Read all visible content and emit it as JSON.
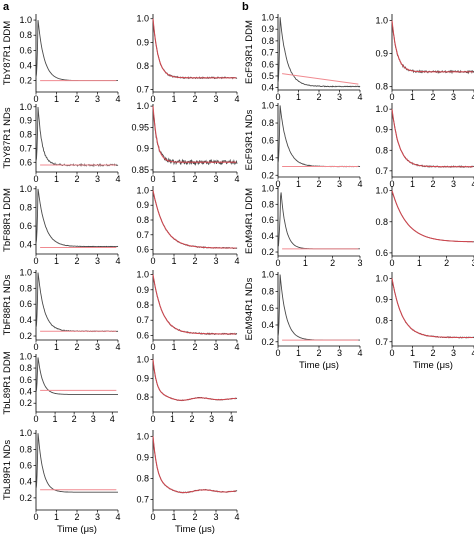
{
  "panels": {
    "a": "a",
    "b": "b"
  },
  "colors": {
    "trace": "#4a4a4a",
    "fit": "#e0454f",
    "background": "#f08a90",
    "axis": "#000000"
  },
  "chart_data": [
    {
      "type": "line",
      "id": "TbY87R1-DDM-raw",
      "ylabel": "TbY87R1 DDM",
      "xlabel": "",
      "xlim": [
        0,
        4
      ],
      "xticks": [
        0,
        1,
        2,
        3,
        4
      ],
      "ylim": [
        0.05,
        1.08
      ],
      "yticks": [
        0.2,
        0.4,
        0.6,
        0.8,
        1.0
      ],
      "peak": 0.1,
      "base": 0.2,
      "bgline": 0.2,
      "tau": 0.3,
      "noise": 0.0
    },
    {
      "type": "line",
      "id": "TbY87R1-DDM-corr",
      "xlabel": "",
      "xlim": [
        0,
        4
      ],
      "xticks": [
        0,
        1,
        2,
        3,
        4
      ],
      "ylim": [
        0.69,
        1.02
      ],
      "yticks": [
        0.7,
        0.8,
        0.9,
        1.0
      ],
      "peak": 0.0,
      "base": 0.75,
      "tau": 0.25,
      "noise": 0.003
    },
    {
      "type": "line",
      "id": "TbY87R1-NDs-raw",
      "ylabel": "TbY87R1 NDs",
      "xlabel": "",
      "xlim": [
        0,
        4
      ],
      "xticks": [
        0,
        1,
        2,
        3,
        4
      ],
      "ylim": [
        0.53,
        1.02
      ],
      "yticks": [
        0.6,
        0.7,
        0.8,
        0.9,
        1.0
      ],
      "peak": 0.1,
      "base": 0.58,
      "bgline": 0.58,
      "tau": 0.2,
      "noise": 0.006
    },
    {
      "type": "line",
      "id": "TbY87R1-NDs-corr",
      "xlabel": "",
      "xlim": [
        0,
        4
      ],
      "xticks": [
        0,
        1,
        2,
        3,
        4
      ],
      "ylim": [
        0.845,
        1.005
      ],
      "yticks": [
        0.85,
        0.9,
        0.95,
        1.0
      ],
      "peak": 0.0,
      "base": 0.868,
      "tau": 0.2,
      "noise": 0.005
    },
    {
      "type": "line",
      "id": "TbF88R1-DDM-raw",
      "ylabel": "TbF88R1 DDM",
      "xlabel": "",
      "xlim": [
        0,
        4
      ],
      "xticks": [
        0,
        1,
        2,
        3,
        4
      ],
      "ylim": [
        0.3,
        1.03
      ],
      "yticks": [
        0.4,
        0.6,
        0.8,
        1.0
      ],
      "peak": 0.1,
      "base": 0.38,
      "bgline": 0.37,
      "tau": 0.35,
      "noise": 0.002
    },
    {
      "type": "line",
      "id": "TbF88R1-DDM-corr",
      "xlabel": "",
      "xlim": [
        0,
        4
      ],
      "xticks": [
        0,
        1,
        2,
        3,
        4
      ],
      "ylim": [
        0.57,
        1.03
      ],
      "yticks": [
        0.6,
        0.7,
        0.8,
        0.9,
        1.0
      ],
      "peak": 0.0,
      "base": 0.61,
      "tau": 0.55,
      "noise": 0.003
    },
    {
      "type": "line",
      "id": "TbF88R1-NDs-raw",
      "ylabel": "TbF88R1 NDs",
      "xlabel": "",
      "xlim": [
        0,
        4
      ],
      "xticks": [
        0,
        1,
        2,
        3,
        4
      ],
      "ylim": [
        0.15,
        1.03
      ],
      "yticks": [
        0.2,
        0.4,
        0.6,
        0.8,
        1.0
      ],
      "peak": 0.1,
      "base": 0.26,
      "bgline": 0.26,
      "tau": 0.3,
      "noise": 0.004
    },
    {
      "type": "line",
      "id": "TbF88R1-NDs-corr",
      "xlabel": "",
      "xlim": [
        0,
        4
      ],
      "xticks": [
        0,
        1,
        2,
        3,
        4
      ],
      "ylim": [
        0.57,
        1.03
      ],
      "yticks": [
        0.6,
        0.7,
        0.8,
        0.9,
        1.0
      ],
      "peak": 0.0,
      "base": 0.61,
      "tau": 0.45,
      "noise": 0.004
    },
    {
      "type": "line",
      "id": "TbL89R1-DDM-raw",
      "ylabel": "TbL89R1 DDM",
      "xlabel": "",
      "xlim": [
        0,
        4.3
      ],
      "xticks": [
        0,
        1,
        2,
        3,
        4
      ],
      "ylim": [
        0.05,
        1.04
      ],
      "yticks": [
        0.2,
        0.4,
        0.6,
        0.8,
        1.0
      ],
      "peak": 0.1,
      "base": 0.35,
      "bgline": 0.42,
      "tau": 0.25,
      "noise": 0.0
    },
    {
      "type": "line",
      "id": "TbL89R1-DDM-corr",
      "xlabel": "",
      "xlim": [
        0,
        4.3
      ],
      "xticks": [
        0,
        1,
        2,
        3,
        4
      ],
      "ylim": [
        0.72,
        1.03
      ],
      "yticks": [
        0.8,
        0.9,
        1.0
      ],
      "peak": 0.0,
      "base": 0.79,
      "tau": 0.2,
      "noise": 0.002,
      "wiggle": 0.012
    },
    {
      "type": "line",
      "id": "TbL89R1-NDs-raw",
      "ylabel": "TbL89R1 NDs",
      "xlabel": "Time (μs)",
      "xlim": [
        0,
        4
      ],
      "xticks": [
        0,
        1,
        2,
        3,
        4
      ],
      "ylim": [
        0.05,
        1.04
      ],
      "yticks": [
        0.2,
        0.4,
        0.6,
        0.8,
        1.0
      ],
      "peak": 0.1,
      "base": 0.27,
      "bgline": 0.3,
      "tau": 0.25,
      "noise": 0.0
    },
    {
      "type": "line",
      "id": "TbL89R1-NDs-corr",
      "xlabel": "Time (μs)",
      "xlim": [
        0,
        4
      ],
      "xticks": [
        0,
        1,
        2,
        3,
        4
      ],
      "ylim": [
        0.65,
        1.03
      ],
      "yticks": [
        0.7,
        0.8,
        0.9,
        1.0
      ],
      "peak": 0.0,
      "base": 0.74,
      "tau": 0.22,
      "noise": 0.002,
      "wiggle": 0.012
    },
    {
      "type": "line",
      "id": "EcF93R1-DDM-raw",
      "ylabel": "EcF93R1 DDM",
      "xlabel": "",
      "xlim": [
        0,
        4
      ],
      "xticks": [
        0,
        1,
        2,
        3,
        4
      ],
      "ylim": [
        0.38,
        1.03
      ],
      "yticks": [
        0.4,
        0.5,
        0.6,
        0.7,
        0.8,
        0.9,
        1.0
      ],
      "peak": 0.1,
      "base": 0.41,
      "bgline": 0.52,
      "bgend": 0.43,
      "tau": 0.35,
      "noise": 0.003
    },
    {
      "type": "line",
      "id": "EcF93R1-DDM-corr",
      "xlabel": "",
      "xlim": [
        0,
        4
      ],
      "xticks": [
        0,
        1,
        2,
        3,
        4
      ],
      "ylim": [
        0.79,
        1.02
      ],
      "yticks": [
        0.8,
        0.9,
        1.0
      ],
      "peak": 0.0,
      "base": 0.845,
      "tau": 0.25,
      "noise": 0.003
    },
    {
      "type": "line",
      "id": "EcF93R1-NDs-raw",
      "ylabel": "EcF93R1 NDs",
      "xlabel": "",
      "xlim": [
        0,
        4
      ],
      "xticks": [
        0,
        1,
        2,
        3,
        4
      ],
      "ylim": [
        0.18,
        1.03
      ],
      "yticks": [
        0.2,
        0.4,
        0.6,
        0.8,
        1.0
      ],
      "peak": 0.1,
      "base": 0.3,
      "bgline": 0.3,
      "tau": 0.35,
      "noise": 0.003
    },
    {
      "type": "line",
      "id": "EcF93R1-NDs-corr",
      "xlabel": "",
      "xlim": [
        0,
        4
      ],
      "xticks": [
        0,
        1,
        2,
        3,
        4
      ],
      "ylim": [
        0.67,
        1.03
      ],
      "yticks": [
        0.7,
        0.8,
        0.9,
        1.0
      ],
      "peak": 0.0,
      "base": 0.72,
      "tau": 0.35,
      "noise": 0.003
    },
    {
      "type": "line",
      "id": "EcM94R1-DDM-raw",
      "ylabel": "EcM94R1 DDM",
      "xlabel": "",
      "xlim": [
        0,
        3
      ],
      "xticks": [
        0,
        1,
        2,
        3
      ],
      "ylim": [
        0.15,
        1.03
      ],
      "yticks": [
        0.2,
        0.4,
        0.6,
        0.8,
        1.0
      ],
      "peak": 0.1,
      "base": 0.24,
      "bgline": 0.24,
      "tau": 0.18,
      "noise": 0.0
    },
    {
      "type": "line",
      "id": "EcM94R1-DDM-corr",
      "xlabel": "",
      "xlim": [
        0,
        3
      ],
      "xticks": [
        0,
        1,
        2,
        3
      ],
      "ylim": [
        0.58,
        1.03
      ],
      "yticks": [
        0.6,
        0.8,
        1.0
      ],
      "peak": 0.0,
      "base": 0.67,
      "tau": 0.55,
      "noise": 0.0
    },
    {
      "type": "line",
      "id": "EcM94R1-NDs-raw",
      "ylabel": "EcM94R1 NDs",
      "xlabel": "Time (μs)",
      "xlim": [
        0,
        4
      ],
      "xticks": [
        0,
        1,
        2,
        3,
        4
      ],
      "ylim": [
        0.15,
        1.03
      ],
      "yticks": [
        0.2,
        0.4,
        0.6,
        0.8,
        1.0
      ],
      "peak": 0.1,
      "base": 0.22,
      "bgline": 0.22,
      "tau": 0.3,
      "noise": 0.0
    },
    {
      "type": "line",
      "id": "EcM94R1-NDs-corr",
      "xlabel": "Time (μs)",
      "xlim": [
        0,
        4
      ],
      "xticks": [
        0,
        1,
        2,
        3,
        4
      ],
      "ylim": [
        0.68,
        1.03
      ],
      "yticks": [
        0.7,
        0.8,
        0.9,
        1.0
      ],
      "peak": 0.0,
      "base": 0.72,
      "tau": 0.5,
      "noise": 0.002
    }
  ]
}
